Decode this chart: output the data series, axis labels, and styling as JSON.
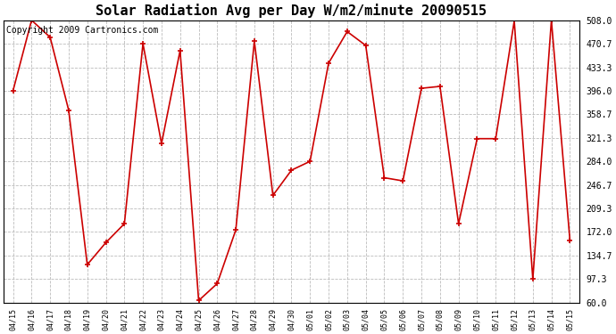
{
  "title": "Solar Radiation Avg per Day W/m2/minute 20090515",
  "copyright": "Copyright 2009 Cartronics.com",
  "labels": [
    "04/15",
    "04/16",
    "04/17",
    "04/18",
    "04/19",
    "04/20",
    "04/21",
    "04/22",
    "04/23",
    "04/24",
    "04/25",
    "04/26",
    "04/27",
    "04/28",
    "04/29",
    "04/30",
    "05/01",
    "05/02",
    "05/03",
    "05/04",
    "05/05",
    "05/06",
    "05/07",
    "05/08",
    "05/09",
    "05/10",
    "05/11",
    "05/12",
    "05/13",
    "05/14",
    "05/15"
  ],
  "values": [
    396,
    508,
    481,
    365,
    120,
    155,
    185,
    471,
    312,
    460,
    63,
    90,
    175,
    475,
    230,
    270,
    284,
    440,
    490,
    468,
    258,
    253,
    400,
    403,
    185,
    320,
    320,
    507,
    97,
    508,
    158
  ],
  "line_color": "#cc0000",
  "marker_color": "#cc0000",
  "bg_color": "#ffffff",
  "plot_bg_color": "#ffffff",
  "grid_color": "#aaaaaa",
  "yticks": [
    60.0,
    97.3,
    134.7,
    172.0,
    209.3,
    246.7,
    284.0,
    321.3,
    358.7,
    396.0,
    433.3,
    470.7,
    508.0
  ],
  "ylim": [
    60.0,
    508.0
  ],
  "title_fontsize": 11,
  "copyright_fontsize": 7
}
